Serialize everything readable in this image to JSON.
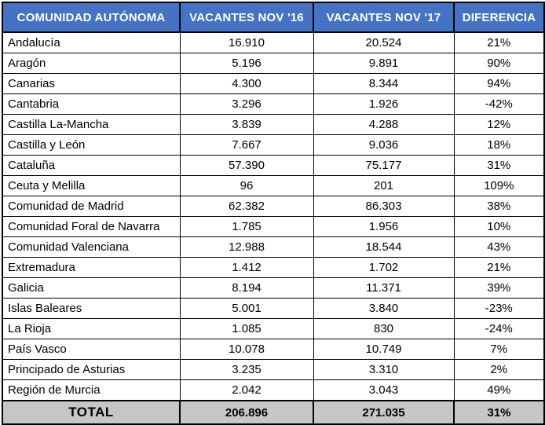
{
  "colors": {
    "header_bg": "#4472C4",
    "header_text": "#FFFFFF",
    "total_bg": "#C6C6C6",
    "border": "#000000"
  },
  "table": {
    "columns": [
      "COMUNIDAD AUTÓNOMA",
      "VACANTES NOV '16",
      "VACANTES NOV '17",
      "DIFERENCIA"
    ],
    "rows": [
      {
        "name": "Andalucía",
        "v16": "16.910",
        "v17": "20.524",
        "diff": "21%"
      },
      {
        "name": "Aragón",
        "v16": "5.196",
        "v17": "9.891",
        "diff": "90%"
      },
      {
        "name": "Canarias",
        "v16": "4.300",
        "v17": "8.344",
        "diff": "94%"
      },
      {
        "name": "Cantabria",
        "v16": "3.296",
        "v17": "1.926",
        "diff": "-42%"
      },
      {
        "name": "Castilla La-Mancha",
        "v16": "3.839",
        "v17": "4.288",
        "diff": "12%"
      },
      {
        "name": "Castilla y León",
        "v16": "7.667",
        "v17": "9.036",
        "diff": "18%"
      },
      {
        "name": "Cataluña",
        "v16": "57.390",
        "v17": "75.177",
        "diff": "31%"
      },
      {
        "name": "Ceuta y Melilla",
        "v16": "96",
        "v17": "201",
        "diff": "109%"
      },
      {
        "name": "Comunidad de Madrid",
        "v16": "62.382",
        "v17": "86.303",
        "diff": "38%"
      },
      {
        "name": "Comunidad Foral de Navarra",
        "v16": "1.785",
        "v17": "1.956",
        "diff": "10%"
      },
      {
        "name": "Comunidad Valenciana",
        "v16": "12.988",
        "v17": "18.544",
        "diff": "43%"
      },
      {
        "name": "Extremadura",
        "v16": "1.412",
        "v17": "1.702",
        "diff": "21%"
      },
      {
        "name": "Galicia",
        "v16": "8.194",
        "v17": "11.371",
        "diff": "39%"
      },
      {
        "name": "Islas Baleares",
        "v16": "5.001",
        "v17": "3.840",
        "diff": "-23%"
      },
      {
        "name": "La Rioja",
        "v16": "1.085",
        "v17": "830",
        "diff": "-24%"
      },
      {
        "name": "País Vasco",
        "v16": "10.078",
        "v17": "10.749",
        "diff": "7%"
      },
      {
        "name": "Principado de Asturias",
        "v16": "3.235",
        "v17": "3.310",
        "diff": "2%"
      },
      {
        "name": "Región de Murcia",
        "v16": "2.042",
        "v17": "3.043",
        "diff": "49%"
      }
    ],
    "total": {
      "name": "TOTAL",
      "v16": "206.896",
      "v17": "271.035",
      "diff": "31%"
    }
  },
  "chart_data": {
    "type": "table",
    "title": "",
    "columns": [
      "COMUNIDAD AUTÓNOMA",
      "VACANTES NOV '16",
      "VACANTES NOV '17",
      "DIFERENCIA"
    ],
    "categories": [
      "Andalucía",
      "Aragón",
      "Canarias",
      "Cantabria",
      "Castilla La-Mancha",
      "Castilla y León",
      "Cataluña",
      "Ceuta y Melilla",
      "Comunidad de Madrid",
      "Comunidad Foral de Navarra",
      "Comunidad Valenciana",
      "Extremadura",
      "Galicia",
      "Islas Baleares",
      "La Rioja",
      "País Vasco",
      "Principado de Asturias",
      "Región de Murcia"
    ],
    "series": [
      {
        "name": "VACANTES NOV '16",
        "values": [
          16910,
          5196,
          4300,
          3296,
          3839,
          7667,
          57390,
          96,
          62382,
          1785,
          12988,
          1412,
          8194,
          5001,
          1085,
          10078,
          3235,
          2042
        ]
      },
      {
        "name": "VACANTES NOV '17",
        "values": [
          20524,
          9891,
          8344,
          1926,
          4288,
          9036,
          75177,
          201,
          86303,
          1956,
          18544,
          1702,
          11371,
          3840,
          830,
          10749,
          3310,
          3043
        ]
      },
      {
        "name": "DIFERENCIA (%)",
        "values": [
          21,
          90,
          94,
          -42,
          12,
          18,
          31,
          109,
          38,
          10,
          43,
          21,
          39,
          -23,
          -24,
          7,
          2,
          49
        ]
      }
    ],
    "totals": {
      "VACANTES NOV '16": 206896,
      "VACANTES NOV '17": 271035,
      "DIFERENCIA (%)": 31
    }
  }
}
